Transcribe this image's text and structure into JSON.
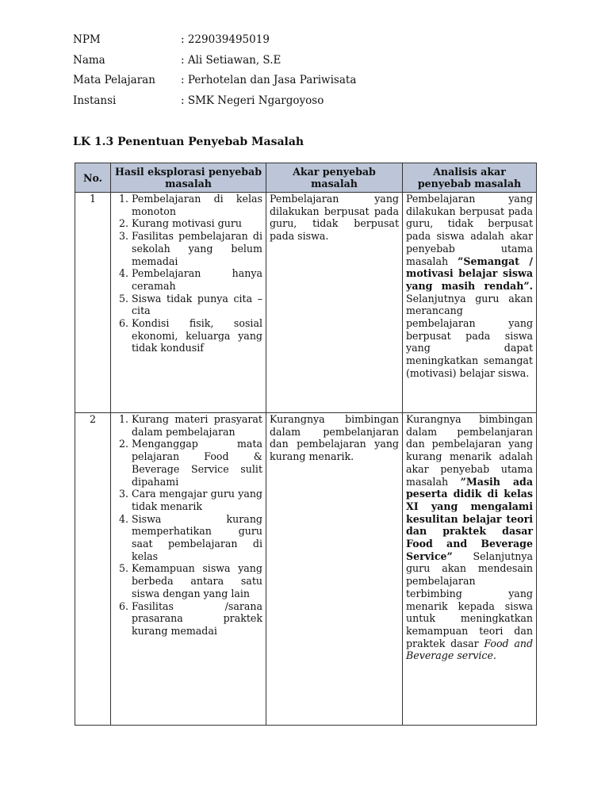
{
  "info": [
    {
      "label": "NPM",
      "value": ": 229039495019"
    },
    {
      "label": "Nama",
      "value": ": Ali Setiawan, S.E"
    },
    {
      "label": "Mata Pelajaran",
      "value": ": Perhotelan dan Jasa Pariwisata"
    },
    {
      "label": "Instansi",
      "value": ": SMK Negeri Ngargoyoso"
    }
  ],
  "title": "LK 1.3 Penentuan Penyebab Masalah",
  "table": {
    "headers": [
      "No.",
      "Hasil eksplorasi penyebab masalah",
      "Akar penyebab masalah",
      "Analisis akar penyebab masalah"
    ],
    "header_color": "#bcc6d8",
    "rows": [
      {
        "no": "1",
        "causes": [
          "Pembelajaran di kelas monoton",
          "Kurang motivasi guru",
          "Fasilitas pembelajaran di sekolah yang belum memadai",
          "Pembelajaran hanya ceramah",
          "Siswa tidak punya cita – cita",
          "Kondisi fisik, sosial ekonomi, keluarga yang tidak kondusif"
        ],
        "root": "Pembelajaran yang dilakukan berpusat pada guru, tidak berpusat pada siswa.",
        "analysis": {
          "a": "Pembelajaran yang dilakukan berpusat pada guru, tidak berpusat pada siswa adalah akar penyebab utama masalah ",
          "b": "”Semangat / motivasi belajar siswa yang masih rendah”.",
          "c": " Selanjutnya guru akan merancang pembelajaran yang berpusat pada siswa yang dapat meningkatkan semangat (motivasi) belajar siswa.",
          "d": ""
        }
      },
      {
        "no": "2",
        "causes": [
          "Kurang materi prasyarat dalam pembelajaran",
          "Menganggap mata pelajaran Food & Beverage Service sulit dipahami",
          "Cara mengajar guru yang tidak menarik",
          "Siswa kurang memperhatikan guru saat pembelajaran di kelas",
          "Kemampuan siswa yang berbeda antara satu siswa dengan yang lain",
          "Fasilitas /sarana prasarana praktek kurang memadai"
        ],
        "root": "Kurangnya bimbingan dalam pembelanjaran dan pembelajaran yang kurang menarik.",
        "analysis": {
          "a": "Kurangnya bimbingan dalam pembelanjaran dan pembelajaran yang kurang menarik adalah akar penyebab utama masalah ",
          "b": "”Masih ada peserta didik di kelas XI yang mengalami kesulitan belajar teori dan praktek dasar Food and Beverage Service”",
          "c": " Selanjutnya guru akan mendesain pembelajaran terbimbing yang menarik kepada siswa untuk meningkatkan kemampuan teori dan praktek dasar ",
          "d": "Food and Beverage service."
        }
      }
    ]
  }
}
